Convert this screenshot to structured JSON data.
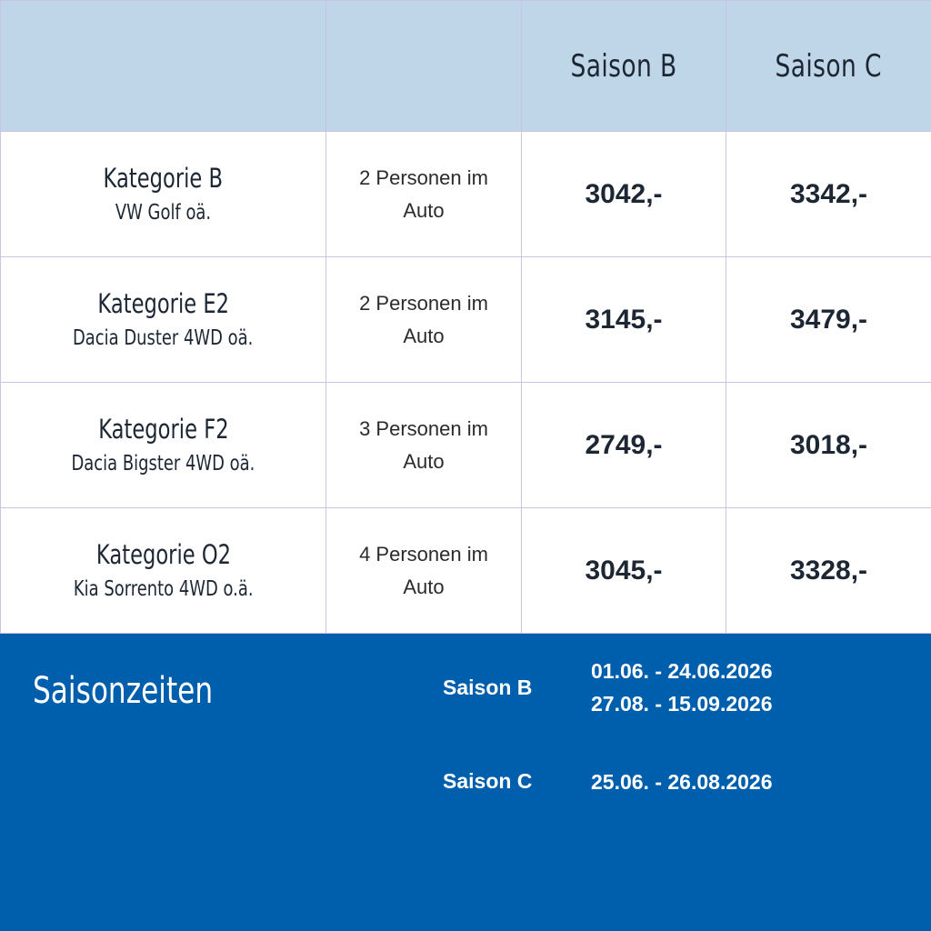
{
  "table": {
    "header": {
      "col1": "",
      "col2": "",
      "season_b": "Saison B",
      "season_c": "Saison C"
    },
    "rows": [
      {
        "category": "Kategorie B",
        "model": "VW Golf oä.",
        "persons": "2 Personen im Auto",
        "price_b": "3042,-",
        "price_c": "3342,-"
      },
      {
        "category": "Kategorie E2",
        "model": "Dacia Duster 4WD oä.",
        "persons": "2 Personen im Auto",
        "price_b": "3145,-",
        "price_c": "3479,-"
      },
      {
        "category": "Kategorie F2",
        "model": "Dacia Bigster 4WD oä.",
        "persons": "3 Personen im Auto",
        "price_b": "2749,-",
        "price_c": "3018,-"
      },
      {
        "category": "Kategorie O2",
        "model": "Kia Sorrento 4WD o.ä.",
        "persons": "4 Personen im Auto",
        "price_b": "3045,-",
        "price_c": "3328,-"
      }
    ]
  },
  "season_times": {
    "title": "Saisonzeiten",
    "seasons": [
      {
        "label": "Saison B",
        "dates": [
          "01.06. - 24.06.2026",
          "27.08. - 15.09.2026"
        ]
      },
      {
        "label": "Saison C",
        "dates": [
          "25.06. - 26.08.2026"
        ]
      }
    ]
  },
  "colors": {
    "header_bg": "#bfd6e9",
    "panel_bg": "#005fac",
    "grid_line": "#c9c3e6",
    "text_dark": "#1d2733"
  }
}
